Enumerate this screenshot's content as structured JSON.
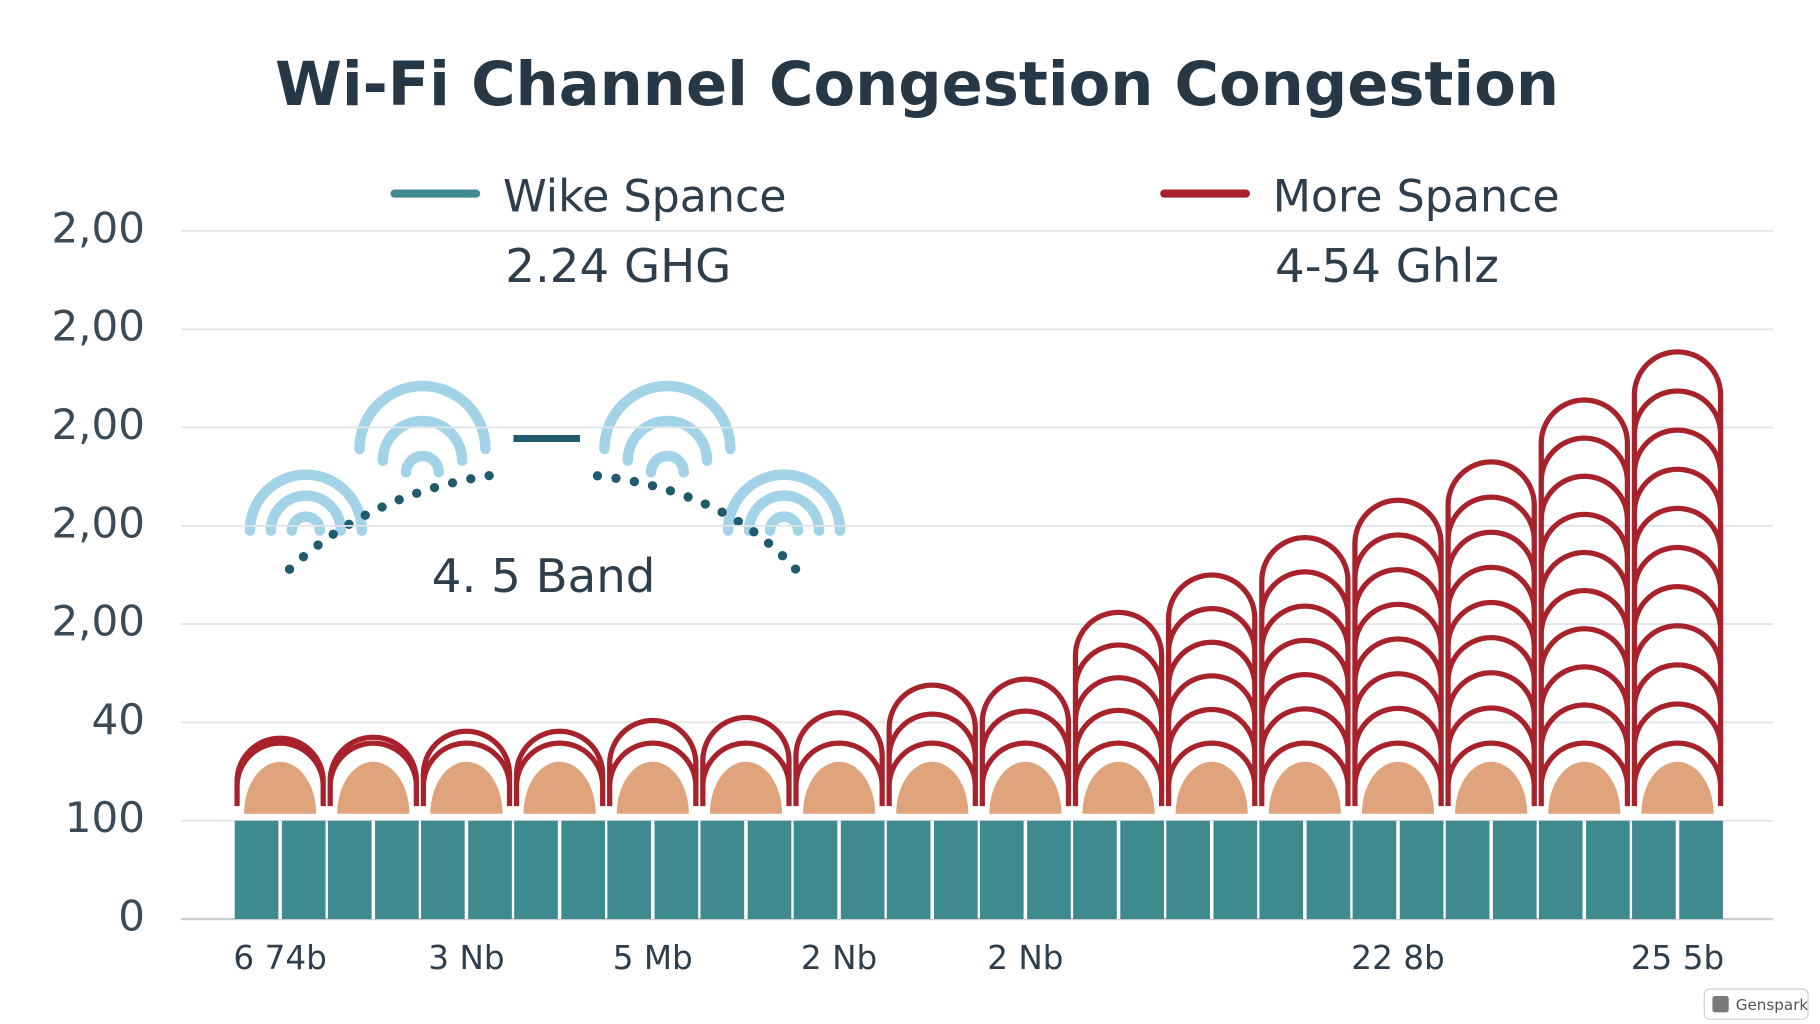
{
  "chart_data": {
    "type": "bar",
    "title": "Wi-Fi Channel Congestion Congestion",
    "annotation": "4. 5 Band",
    "watermark": "Genspark",
    "stacked": true,
    "grid": true,
    "categories": [
      "6 74b",
      null,
      "3 Nb",
      null,
      "5 Mb",
      null,
      "2 Nb",
      null,
      "2 Nb",
      null,
      null,
      null,
      "22 8b",
      null,
      null,
      "25 5b"
    ],
    "series": [
      {
        "name": "Wike Spance",
        "subtitle": "2.24 GHG",
        "color": "#3f8a8f",
        "values": [
          1,
          1,
          1,
          1,
          1,
          1,
          1,
          1,
          1,
          1,
          1,
          1,
          1,
          1,
          1,
          1
        ]
      },
      {
        "color": "#e0a47c",
        "values": [
          0.6,
          0.6,
          0.6,
          0.6,
          0.6,
          0.6,
          0.6,
          0.6,
          0.6,
          0.6,
          0.6,
          0.6,
          0.6,
          0.6,
          0.6,
          0.6
        ]
      },
      {
        "name": "More Spance",
        "subtitle": "4-54 Ghlz",
        "color": "#a8222c",
        "values": [
          0.24,
          0.25,
          0.31,
          0.31,
          0.42,
          0.45,
          0.5,
          0.78,
          0.84,
          1.52,
          1.9,
          2.28,
          2.66,
          3.05,
          3.68,
          4.17
        ]
      }
    ],
    "ylim": [
      0,
      7
    ],
    "yticks": [
      0,
      {
        "value": 1,
        "label": "100"
      },
      {
        "value": 2,
        "label": "40"
      },
      {
        "value": 3,
        "label": "2,00"
      },
      {
        "value": 4,
        "label": "2,00"
      },
      {
        "value": 5,
        "label": "2,00"
      },
      {
        "value": 6,
        "label": "2,00"
      },
      {
        "value": 7,
        "label": "2,00"
      }
    ]
  }
}
